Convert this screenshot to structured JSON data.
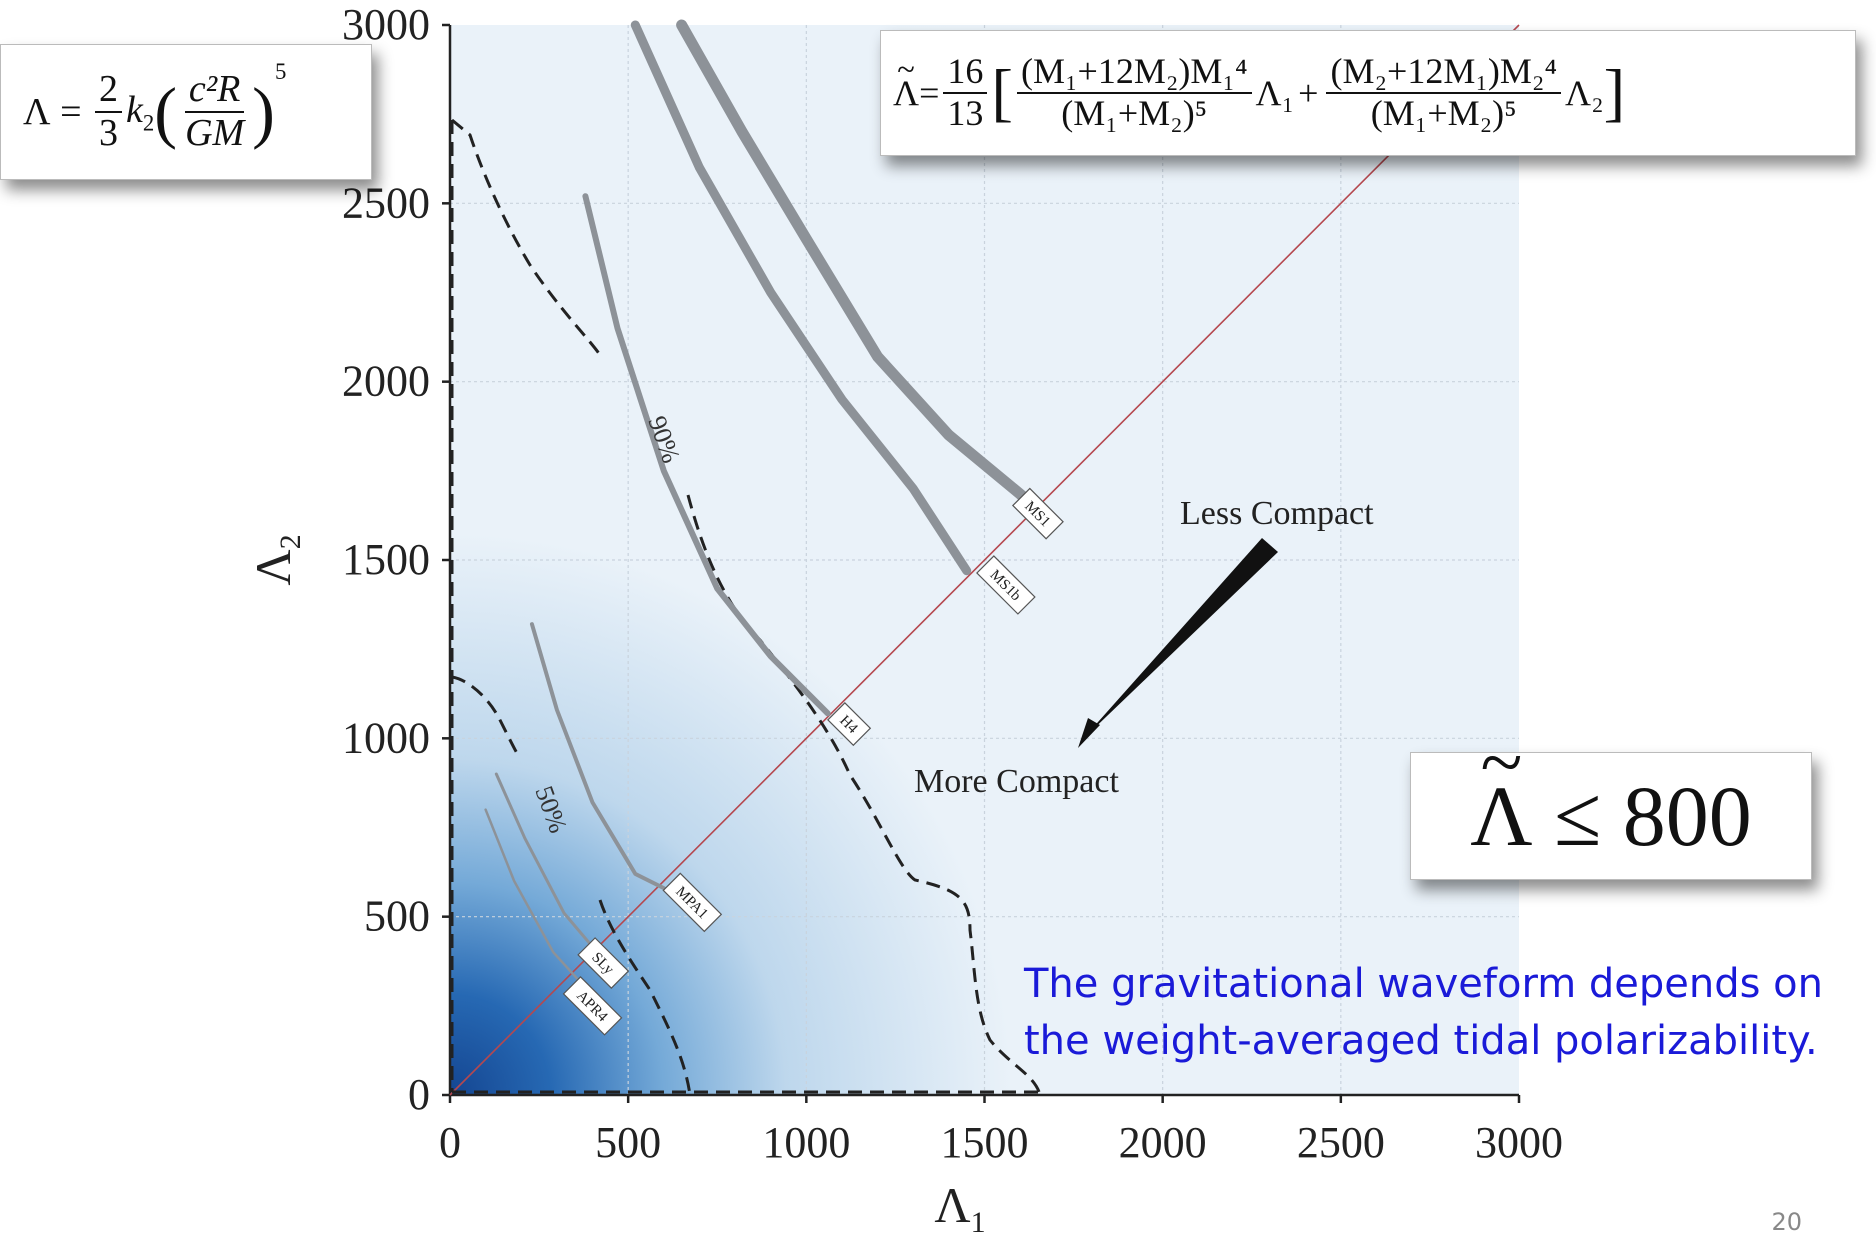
{
  "chart_data": {
    "type": "line",
    "xlabel": "Λ1",
    "ylabel": "Λ2",
    "xlim": [
      0,
      3000
    ],
    "ylim": [
      0,
      3000
    ],
    "x_ticks": [
      "0",
      "500",
      "1000",
      "1500",
      "2000",
      "2500",
      "3000"
    ],
    "y_ticks": [
      "0",
      "500",
      "1000",
      "1500",
      "2000",
      "2500",
      "3000"
    ],
    "grid": true,
    "background": "2D probability density, dark blue near the origin fading toward higher Λ1, Λ2",
    "eos_curves": [
      {
        "name": "MS1",
        "label_at": [
          1650,
          1630
        ],
        "points": [
          [
            650,
            3000
          ],
          [
            820,
            2700
          ],
          [
            1000,
            2400
          ],
          [
            1200,
            2070
          ],
          [
            1400,
            1850
          ],
          [
            1630,
            1660
          ]
        ]
      },
      {
        "name": "MS1b",
        "label_at": [
          1560,
          1430
        ],
        "points": [
          [
            520,
            3000
          ],
          [
            700,
            2600
          ],
          [
            900,
            2250
          ],
          [
            1100,
            1950
          ],
          [
            1300,
            1700
          ],
          [
            1450,
            1470
          ]
        ]
      },
      {
        "name": "H4",
        "label_at": [
          1120,
          1040
        ],
        "points": [
          [
            380,
            2520
          ],
          [
            470,
            2150
          ],
          [
            600,
            1750
          ],
          [
            750,
            1420
          ],
          [
            900,
            1230
          ],
          [
            1060,
            1070
          ]
        ]
      },
      {
        "name": "MPA1",
        "label_at": [
          680,
          540
        ],
        "points": [
          [
            230,
            1320
          ],
          [
            300,
            1080
          ],
          [
            400,
            820
          ],
          [
            520,
            620
          ],
          [
            600,
            580
          ]
        ]
      },
      {
        "name": "SLy",
        "label_at": [
          430,
          370
        ],
        "points": [
          [
            130,
            900
          ],
          [
            210,
            720
          ],
          [
            320,
            510
          ],
          [
            430,
            380
          ]
        ]
      },
      {
        "name": "APR4",
        "label_at": [
          400,
          250
        ],
        "points": [
          [
            100,
            800
          ],
          [
            180,
            600
          ],
          [
            290,
            400
          ],
          [
            390,
            290
          ]
        ]
      }
    ],
    "contours": [
      {
        "name": "90%",
        "label_at": [
          560,
          1900
        ]
      },
      {
        "name": "50%",
        "label_at": [
          310,
          770
        ]
      }
    ],
    "equal_lambda_line": {
      "from": [
        0,
        0
      ],
      "to": [
        3000,
        3000
      ],
      "color": "#b5484f"
    }
  },
  "formulas": {
    "lambda_lhs": "Λ",
    "lambda_frac_num": "2",
    "lambda_frac_den": "3",
    "lambda_k": "k",
    "lambda_k_sub": "2",
    "lambda_inner_num": "c²R",
    "lambda_inner_den": "GM",
    "lambda_power": "5",
    "tilde_lhs": "Λ",
    "tilde_coef_num": "16",
    "tilde_coef_den": "13",
    "tilde_term1_num": "(M₁+12M₂)M₁⁴",
    "tilde_term1_den": "(M₁+M₂)⁵",
    "tilde_term1_lambda": "Λ₁",
    "tilde_plus": "+",
    "tilde_term2_num": "(M₂+12M₁)M₂⁴",
    "tilde_term2_den": "(M₁+M₂)⁵",
    "tilde_term2_lambda": "Λ₂",
    "bound_symbol": "Λ",
    "bound_relation": "≤ 800"
  },
  "annotations": {
    "less_compact": "Less Compact",
    "more_compact": "More Compact"
  },
  "caption_line1": "The gravitational waveform depends on",
  "caption_line2": "the weight-averaged tidal polarizability.",
  "page_number": "20",
  "colors": {
    "density_dark": "#0b3f8f",
    "density_light": "#eef5fb",
    "caption": "#1a1ad8"
  }
}
